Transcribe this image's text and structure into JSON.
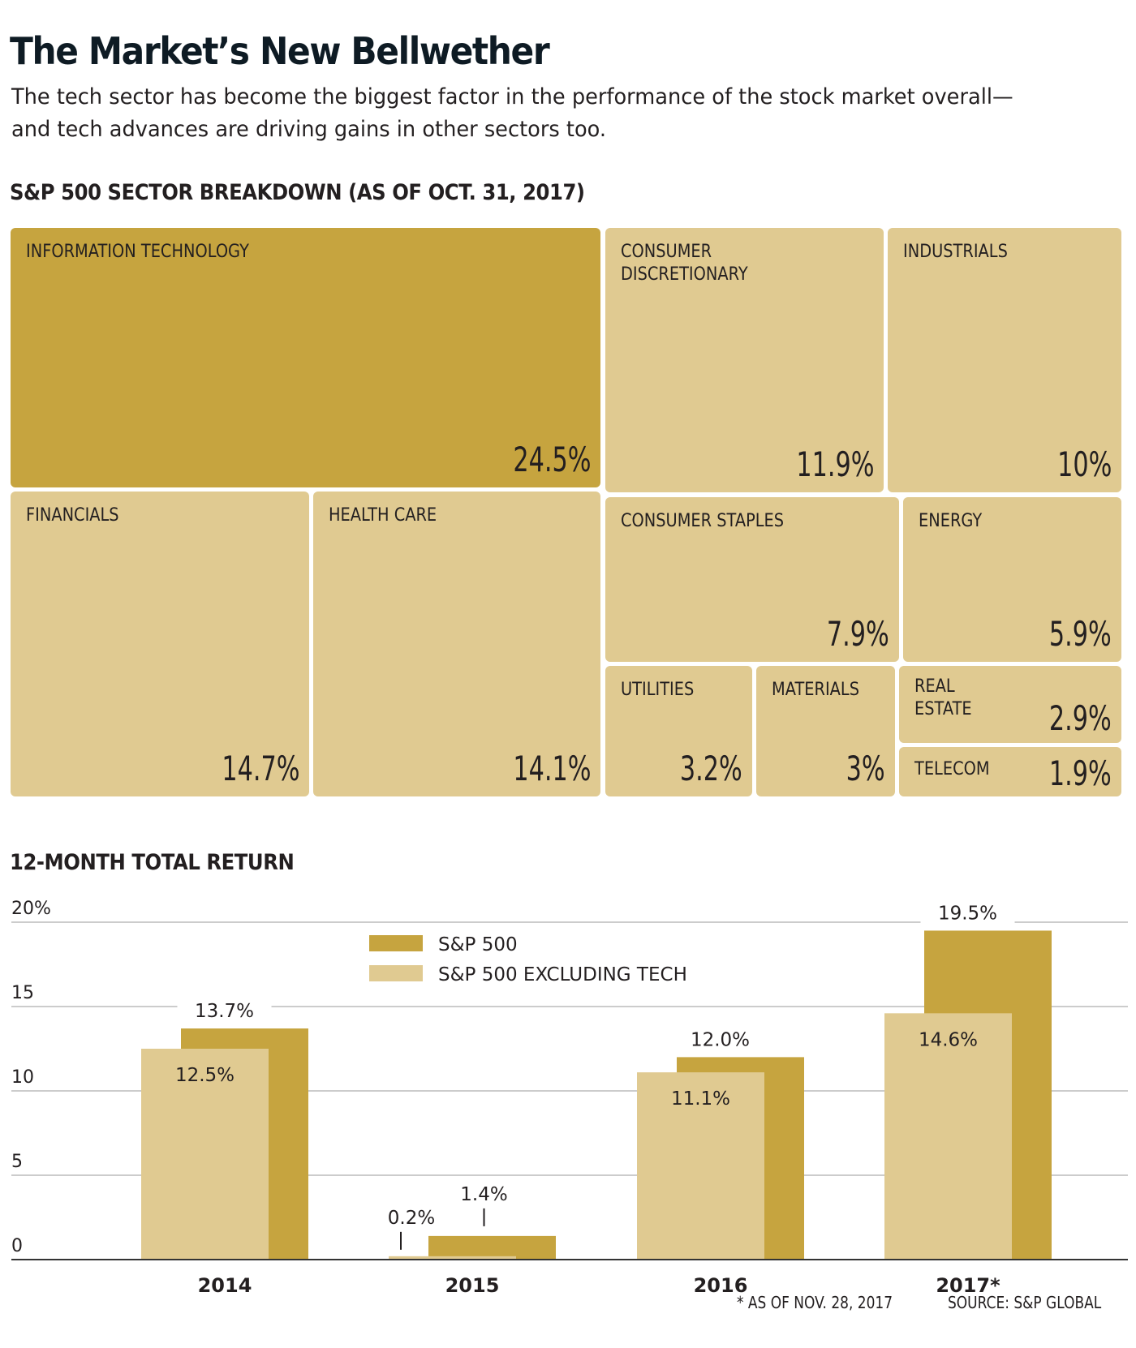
{
  "header": {
    "title": "The Market’s New Bellwether",
    "subtitle": "The tech sector has become the biggest factor in the performance of the stock market overall—and tech advances are driving gains in other sectors too."
  },
  "colors": {
    "highlight": "#c6a43f",
    "base": "#e0ca91",
    "text": "#231f20",
    "grid": "#cccccc",
    "axis": "#333333"
  },
  "treemap": {
    "heading": "S&P 500 SECTOR BREAKDOWN (AS OF OCT. 31, 2017)",
    "sectors": [
      {
        "label": "INFORMATION TECHNOLOGY",
        "value": "24.5%",
        "highlight": true
      },
      {
        "label": "CONSUMER\nDISCRETIONARY",
        "value": "11.9%",
        "highlight": false
      },
      {
        "label": "INDUSTRIALS",
        "value": "10%",
        "highlight": false
      },
      {
        "label": "FINANCIALS",
        "value": "14.7%",
        "highlight": false
      },
      {
        "label": "HEALTH CARE",
        "value": "14.1%",
        "highlight": false
      },
      {
        "label": "CONSUMER STAPLES",
        "value": "7.9%",
        "highlight": false
      },
      {
        "label": "ENERGY",
        "value": "5.9%",
        "highlight": false
      },
      {
        "label": "UTILITIES",
        "value": "3.2%",
        "highlight": false
      },
      {
        "label": "MATERIALS",
        "value": "3%",
        "highlight": false
      },
      {
        "label": "REAL\nESTATE",
        "value": "2.9%",
        "highlight": false
      },
      {
        "label": "TELECOM",
        "value": "1.9%",
        "highlight": false
      }
    ]
  },
  "chart_data": {
    "type": "bar",
    "title": "12-MONTH TOTAL RETURN",
    "xlabel": "",
    "ylabel": "",
    "categories": [
      "2014",
      "2015",
      "2016",
      "2017*"
    ],
    "series": [
      {
        "name": "S&P 500",
        "values": [
          13.7,
          1.4,
          12.0,
          19.5
        ],
        "labels": [
          "13.7%",
          "1.4%",
          "12.0%",
          "19.5%"
        ]
      },
      {
        "name": "S&P 500 EXCLUDING TECH",
        "values": [
          12.5,
          0.2,
          11.1,
          14.6
        ],
        "labels": [
          "12.5%",
          "0.2%",
          "11.1%",
          "14.6%"
        ]
      }
    ],
    "ylim": [
      0,
      20
    ],
    "yticks": [
      0,
      5,
      10,
      15,
      20
    ],
    "ytick_labels": [
      "0",
      "5",
      "10",
      "15",
      "20%"
    ],
    "grid": true,
    "legend": "top-center",
    "bars_overlapped": true
  },
  "footer": {
    "note": "* AS OF NOV. 28, 2017",
    "source": "SOURCE: S&P GLOBAL"
  }
}
